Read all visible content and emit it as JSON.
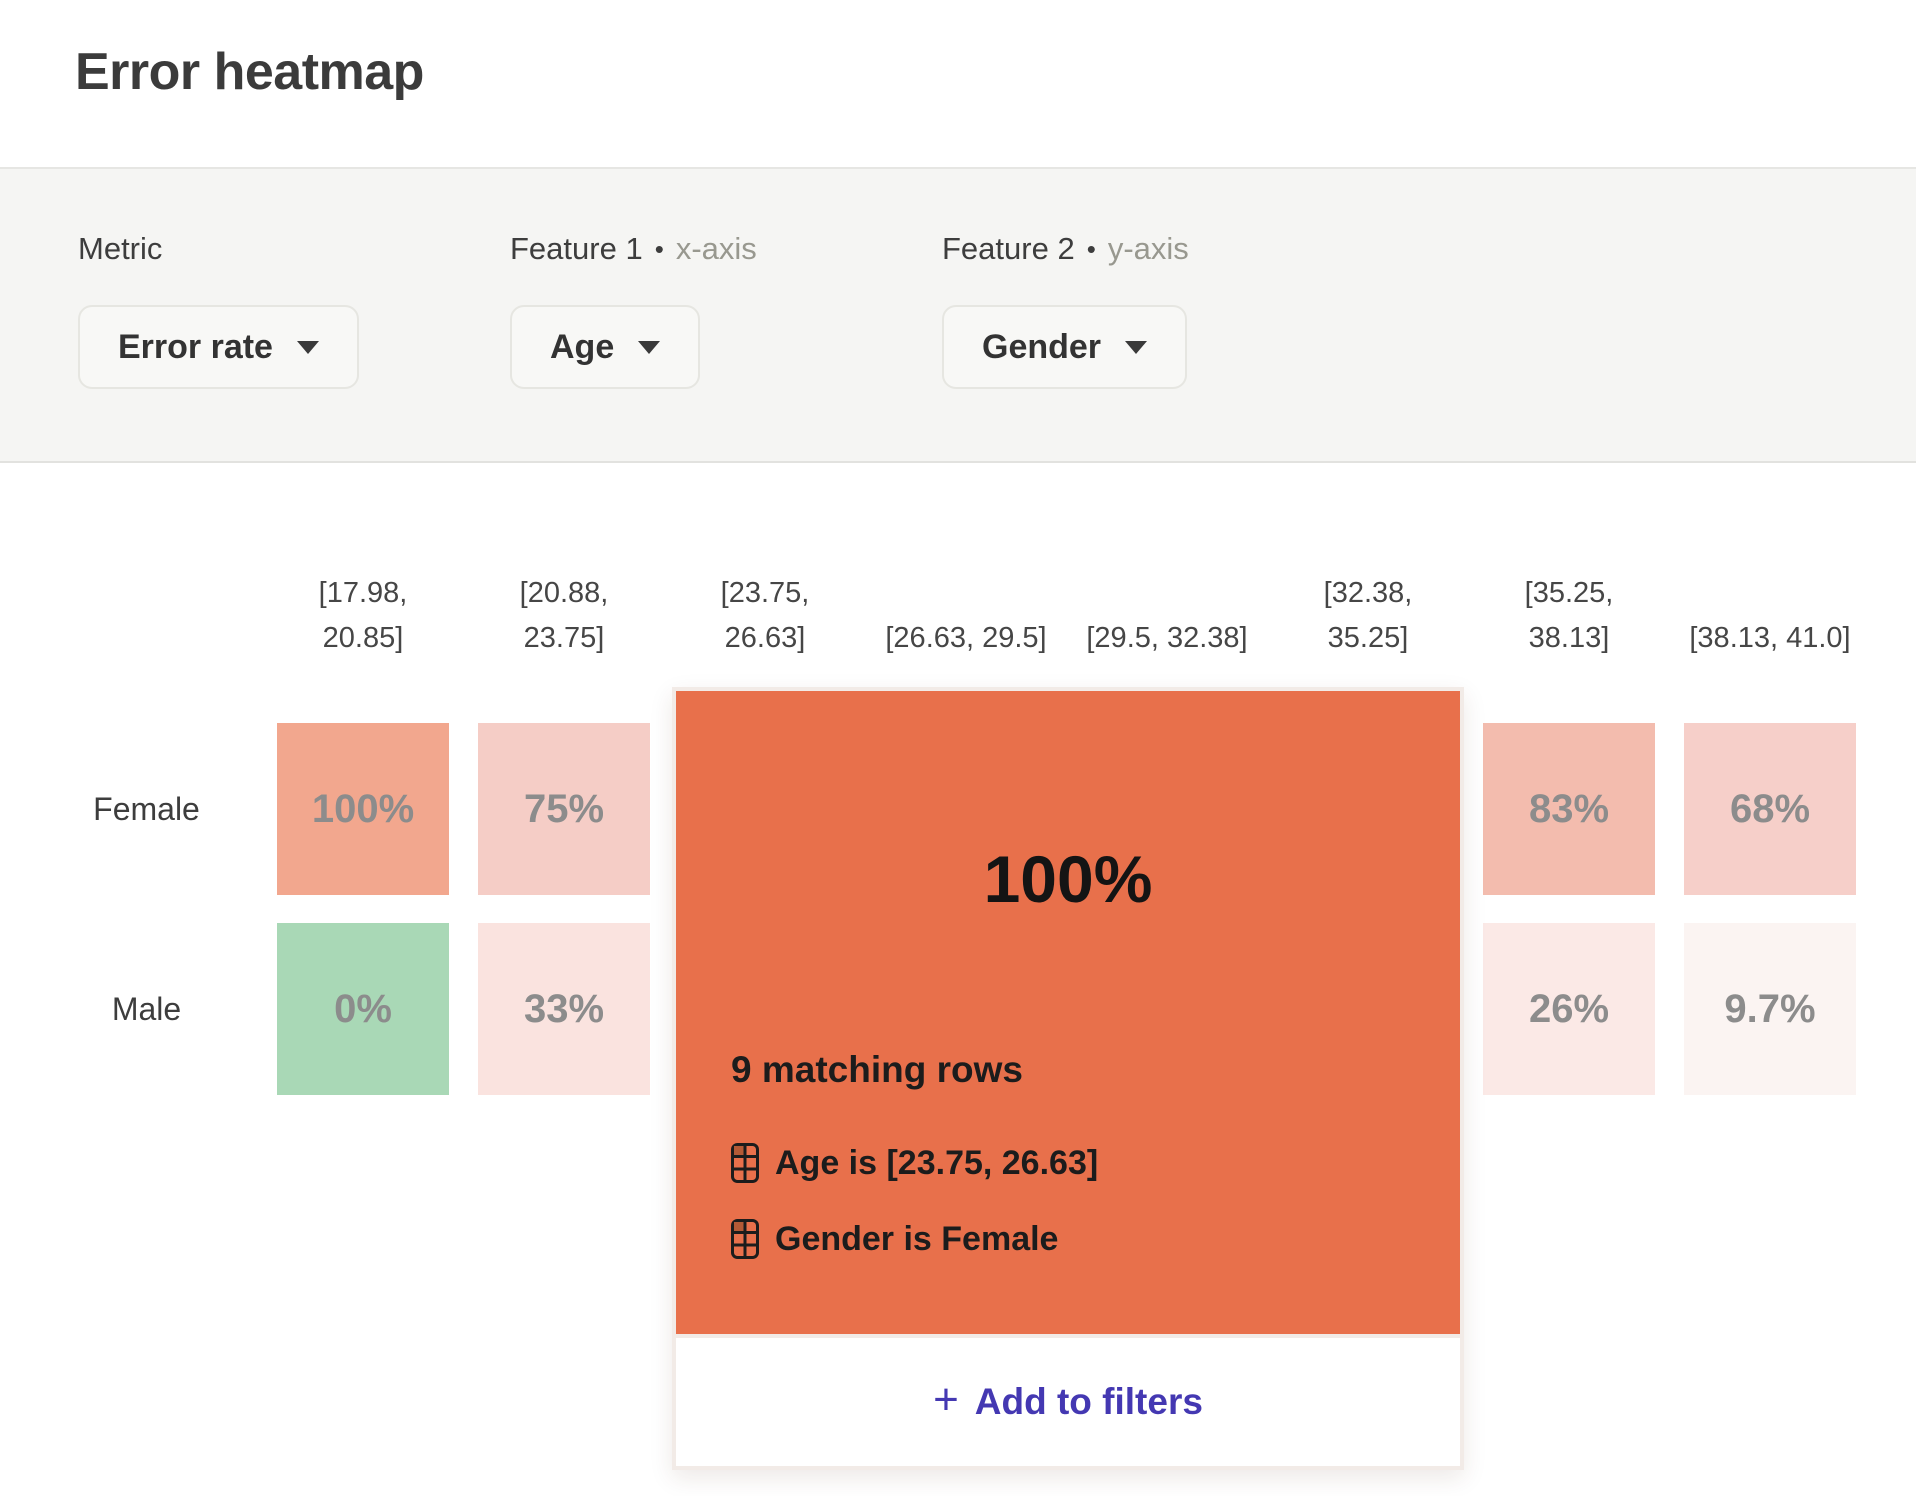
{
  "header": {
    "title": "Error heatmap"
  },
  "filters": {
    "bullet": "•",
    "metric": {
      "label": "Metric",
      "value": "Error rate"
    },
    "feature1": {
      "label": "Feature 1",
      "axis_hint": "x-axis",
      "value": "Age"
    },
    "feature2": {
      "label": "Feature 2",
      "axis_hint": "y-axis",
      "value": "Gender"
    }
  },
  "chart_data": {
    "type": "heatmap",
    "metric": "Error rate",
    "x_feature": "Age",
    "y_feature": "Gender",
    "x_bins": [
      "[17.98, 20.85]",
      "[20.88, 23.75]",
      "[23.75, 26.63]",
      "[26.63, 29.5]",
      "[29.5, 32.38]",
      "[32.38, 35.25]",
      "[35.25, 38.13]",
      "[38.13, 41.0]"
    ],
    "y_categories": [
      "Female",
      "Male"
    ],
    "rows": [
      {
        "label": "Female",
        "values": [
          "100%",
          "75%",
          "100%",
          null,
          null,
          null,
          "83%",
          "68%"
        ],
        "colors": [
          "#f2a78e",
          "#f5cdc6",
          null,
          null,
          null,
          null,
          "#f3bcae",
          "#f6cfc9"
        ],
        "covered_by_popup": [
          false,
          false,
          true,
          true,
          true,
          true,
          false,
          false
        ]
      },
      {
        "label": "Male",
        "values": [
          "0%",
          "33%",
          null,
          null,
          null,
          null,
          "26%",
          "9.7%"
        ],
        "colors": [
          "#a9d8b6",
          "#fae3df",
          null,
          null,
          null,
          null,
          "#fbe9e6",
          "#fbf4f2"
        ],
        "covered_by_popup": [
          false,
          false,
          true,
          true,
          true,
          true,
          false,
          false
        ]
      }
    ],
    "color_scale": {
      "low": "#a9d8b6",
      "high": "#f2a78e",
      "selected": "#e8704b"
    }
  },
  "popup": {
    "value": "100%",
    "matching_rows": "9 matching rows",
    "filters": [
      {
        "text": "Age is [23.75, 26.63]"
      },
      {
        "text": "Gender is Female"
      }
    ],
    "plus": "+",
    "add_button_label": "Add to filters",
    "accent_color": "#e8704b",
    "button_text_color": "#4438b2"
  }
}
